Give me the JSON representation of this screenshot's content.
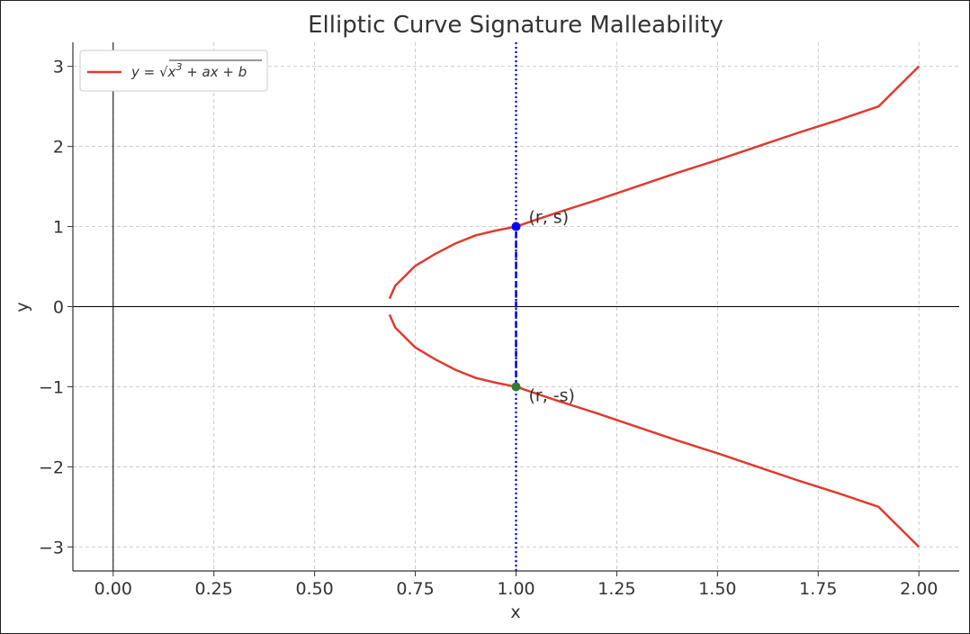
{
  "chart_data": {
    "type": "line",
    "title": "Elliptic Curve Signature Malleability",
    "xlabel": "x",
    "ylabel": "y",
    "xlim": [
      -0.1,
      2.1
    ],
    "ylim": [
      -3.3,
      3.3
    ],
    "xticks": [
      0.0,
      0.25,
      0.5,
      0.75,
      1.0,
      1.25,
      1.5,
      1.75,
      2.0
    ],
    "xtick_labels": [
      "0.00",
      "0.25",
      "0.50",
      "0.75",
      "1.00",
      "1.25",
      "1.50",
      "1.75",
      "2.00"
    ],
    "yticks": [
      -3,
      -2,
      -1,
      0,
      1,
      2,
      3
    ],
    "ytick_labels": [
      "−3",
      "−2",
      "−1",
      "0",
      "1",
      "2",
      "3"
    ],
    "grid": true,
    "legend_position": "top-left",
    "series": [
      {
        "name": "y = √x³ + ax + b",
        "color": "#e03a2e",
        "branches": [
          {
            "x": [
              0.686,
              0.7,
              0.75,
              0.8,
              0.85,
              0.9,
              0.95,
              1.0,
              1.1,
              1.2,
              1.3,
              1.4,
              1.5,
              1.6,
              1.7,
              1.8,
              1.9,
              2.0
            ],
            "y": [
              0.1,
              0.26,
              0.51,
              0.66,
              0.79,
              0.89,
              0.95,
              1.0,
              1.17,
              1.33,
              1.5,
              1.67,
              1.83,
              2.0,
              2.17,
              2.33,
              2.5,
              3.0
            ]
          },
          {
            "x": [
              0.686,
              0.7,
              0.75,
              0.8,
              0.85,
              0.9,
              0.95,
              1.0,
              1.1,
              1.2,
              1.3,
              1.4,
              1.5,
              1.6,
              1.7,
              1.8,
              1.9,
              2.0
            ],
            "y": [
              -0.1,
              -0.26,
              -0.51,
              -0.66,
              -0.79,
              -0.89,
              -0.95,
              -1.0,
              -1.17,
              -1.33,
              -1.5,
              -1.67,
              -1.83,
              -2.0,
              -2.17,
              -2.33,
              -2.5,
              -3.0
            ]
          }
        ]
      }
    ],
    "vertical_line": {
      "x": 1.0,
      "color": "#0000dd",
      "style": "dotted"
    },
    "segment": {
      "x": 1.0,
      "y_from": -1,
      "y_to": 1,
      "color": "#0000dd",
      "style": "dashed"
    },
    "points": [
      {
        "x": 1.0,
        "y": 1.0,
        "color": "#0000ff",
        "label": "(r, s)"
      },
      {
        "x": 1.0,
        "y": -1.0,
        "color": "#2e7d32",
        "label": "(r, -s)"
      }
    ],
    "zero_lines": true
  },
  "legend": {
    "label_prefix": "y = ",
    "label_radicand": "x",
    "label_exp": "3",
    "label_rest": " + ax + b"
  }
}
